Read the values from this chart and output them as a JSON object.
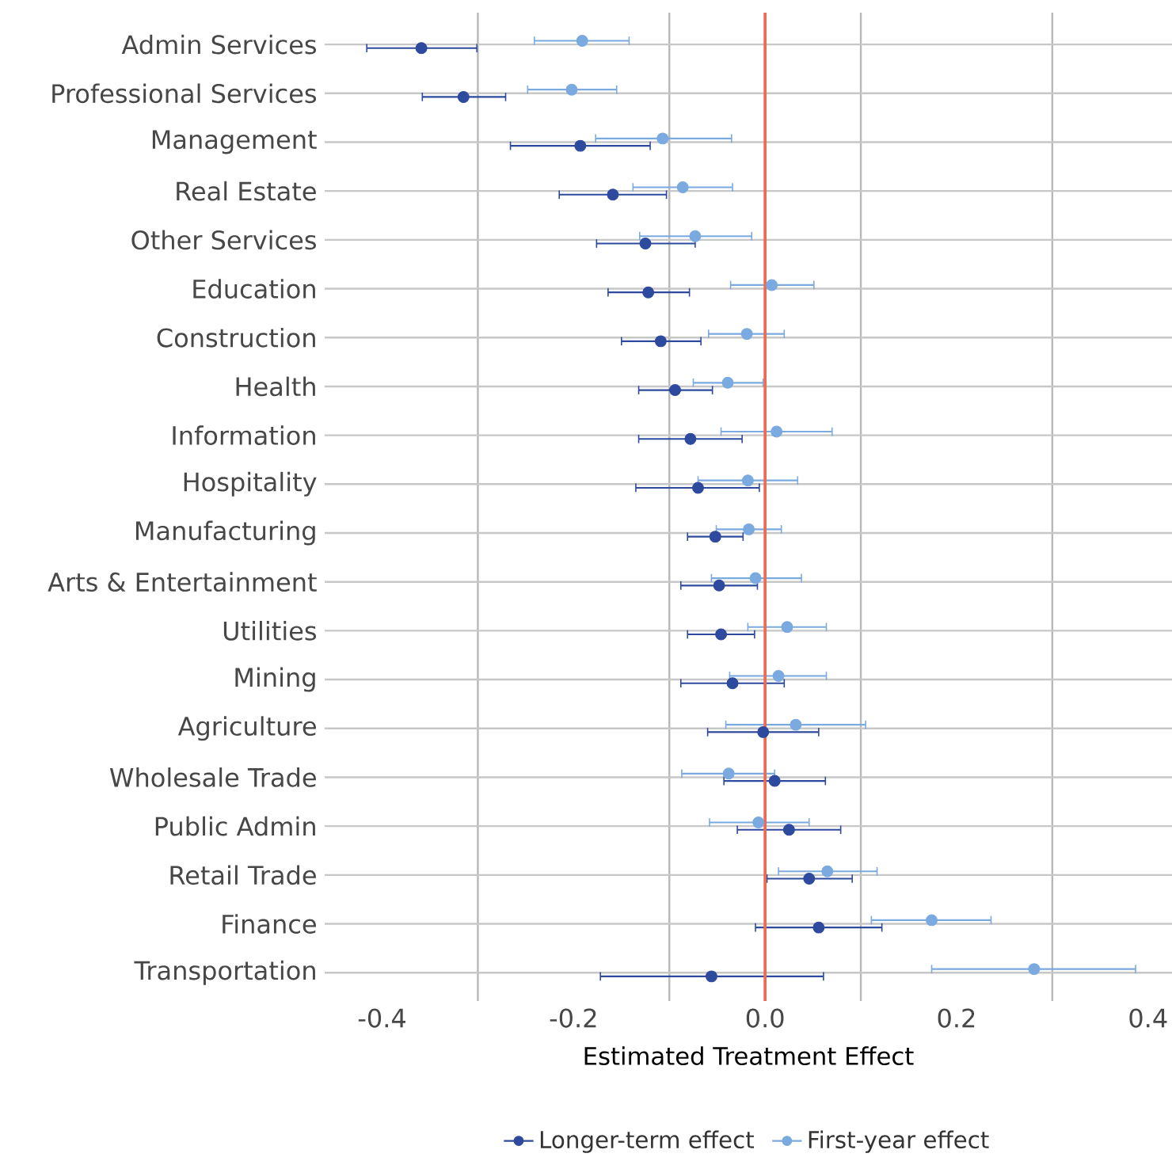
{
  "chart_data": {
    "type": "scatter",
    "orientation": "horizontal",
    "categories": [
      "Admin Services",
      "Professional Services",
      "Management",
      "Real Estate",
      "Other Services",
      "Education",
      "Construction",
      "Health",
      "Information",
      "Hospitality",
      "Manufacturing",
      "Arts & Entertainment",
      "Utilities",
      "Mining",
      "Agriculture",
      "Wholesale Trade",
      "Public Admin",
      "Retail Trade",
      "Finance",
      "Transportation"
    ],
    "series": [
      {
        "name": "Longer-term effect",
        "color": "#2e4a9e",
        "values": [
          -0.359,
          -0.315,
          -0.193,
          -0.159,
          -0.125,
          -0.122,
          -0.109,
          -0.094,
          -0.078,
          -0.07,
          -0.052,
          -0.048,
          -0.046,
          -0.034,
          -0.002,
          0.01,
          0.025,
          0.046,
          0.056,
          -0.056
        ],
        "errors": [
          [
            -0.416,
            -0.301
          ],
          [
            -0.358,
            -0.271
          ],
          [
            -0.266,
            -0.12
          ],
          [
            -0.215,
            -0.103
          ],
          [
            -0.176,
            -0.073
          ],
          [
            -0.164,
            -0.079
          ],
          [
            -0.15,
            -0.067
          ],
          [
            -0.132,
            -0.055
          ],
          [
            -0.132,
            -0.024
          ],
          [
            -0.135,
            -0.006
          ],
          [
            -0.081,
            -0.023
          ],
          [
            -0.088,
            -0.008
          ],
          [
            -0.081,
            -0.011
          ],
          [
            -0.088,
            0.02
          ],
          [
            -0.06,
            0.056
          ],
          [
            -0.043,
            0.063
          ],
          [
            -0.029,
            0.079
          ],
          [
            0.002,
            0.091
          ],
          [
            -0.01,
            0.122
          ],
          [
            -0.172,
            0.061
          ]
        ]
      },
      {
        "name": "First-year effect",
        "color": "#7aaadf",
        "values": [
          -0.191,
          -0.202,
          -0.107,
          -0.086,
          -0.073,
          0.007,
          -0.019,
          -0.039,
          0.012,
          -0.018,
          -0.017,
          -0.01,
          0.023,
          0.014,
          0.032,
          -0.038,
          -0.007,
          0.065,
          0.174,
          0.281
        ],
        "errors": [
          [
            -0.241,
            -0.142
          ],
          [
            -0.248,
            -0.155
          ],
          [
            -0.177,
            -0.035
          ],
          [
            -0.138,
            -0.034
          ],
          [
            -0.131,
            -0.014
          ],
          [
            -0.036,
            0.051
          ],
          [
            -0.059,
            0.02
          ],
          [
            -0.075,
            -0.002
          ],
          [
            -0.046,
            0.07
          ],
          [
            -0.07,
            0.034
          ],
          [
            -0.051,
            0.017
          ],
          [
            -0.056,
            0.038
          ],
          [
            -0.018,
            0.064
          ],
          [
            -0.037,
            0.064
          ],
          [
            -0.041,
            0.105
          ],
          [
            -0.087,
            0.01
          ],
          [
            -0.058,
            0.046
          ],
          [
            0.014,
            0.117
          ],
          [
            0.111,
            0.236
          ],
          [
            0.174,
            0.387
          ]
        ]
      }
    ],
    "xlabel": "Estimated Treatment Effect",
    "xlim": [
      -0.46,
      0.425
    ],
    "xticks": [
      -0.4,
      {
        "value": -0.3,
        "label": null
      },
      -0.2,
      {
        "value": -0.1,
        "label": null
      },
      {
        "value": 0,
        "label": "0.0"
      },
      {
        "value": 0.1,
        "label": null
      },
      0.2,
      {
        "value": 0.3,
        "label": null
      },
      0.4
    ],
    "ref_lines": [
      {
        "axis": "x",
        "value": 0,
        "color": "#ee6a55"
      }
    ],
    "grid": true,
    "legend": "bottom",
    "marker": "circle"
  }
}
